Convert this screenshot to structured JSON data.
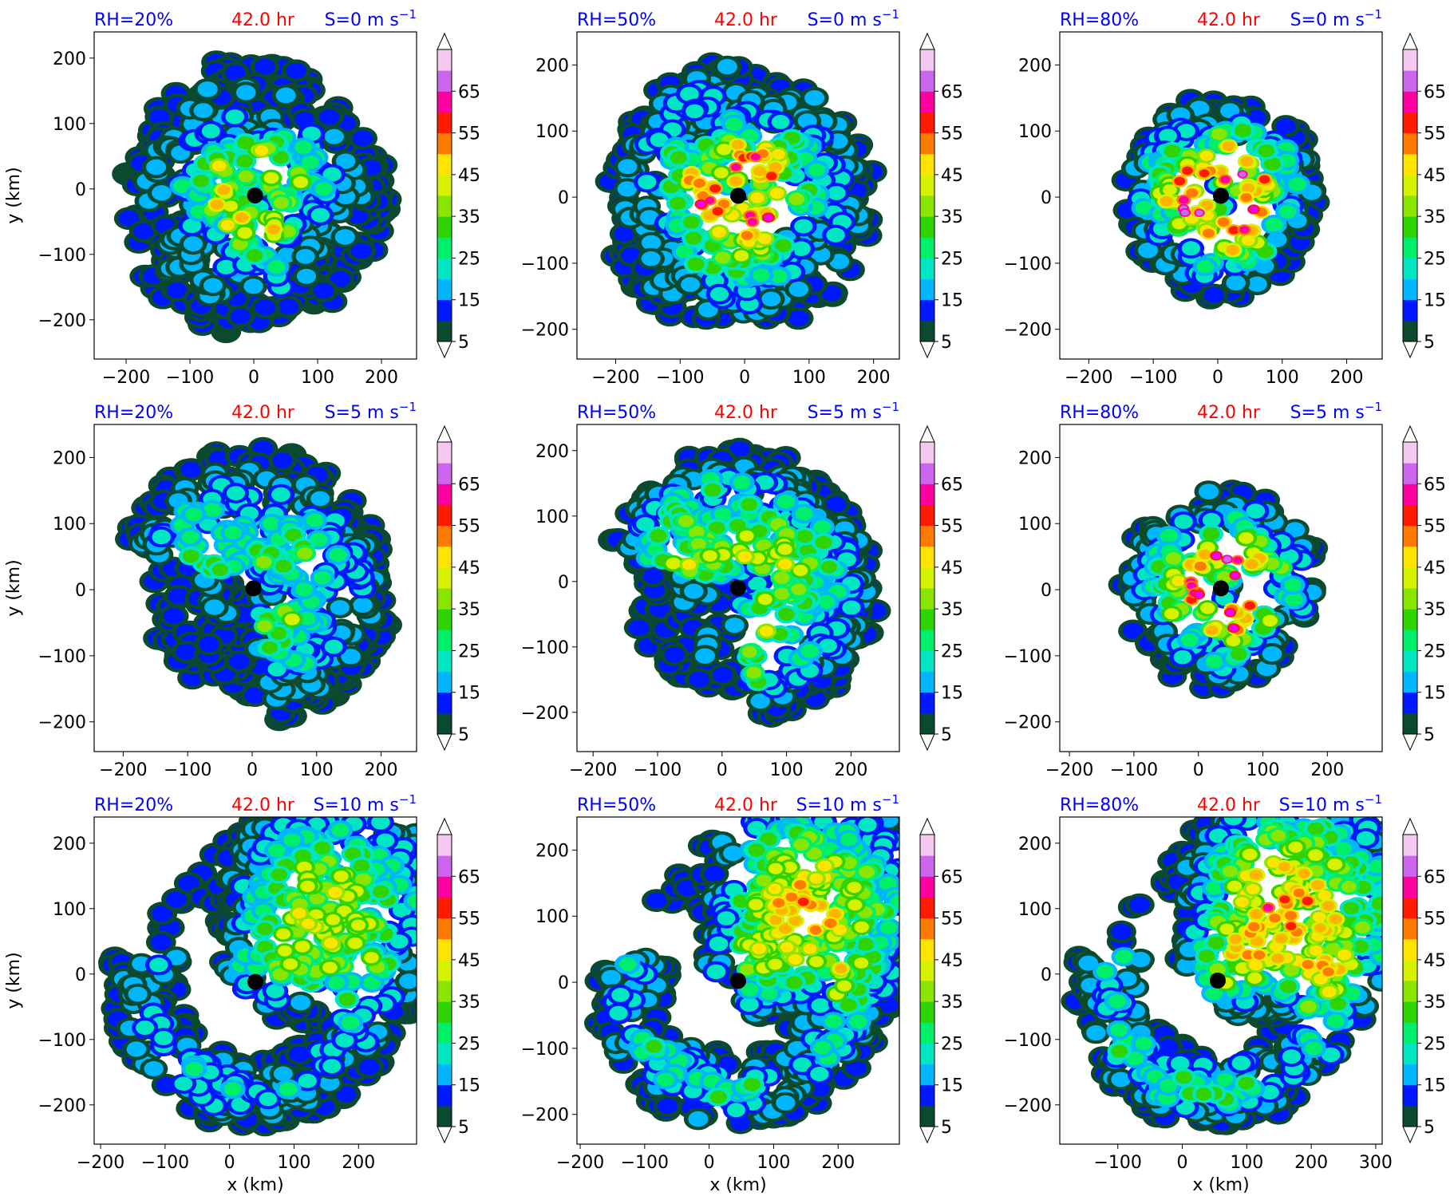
{
  "figure": {
    "time_label": "42.0 hr",
    "x_axis_label": "x (km)",
    "y_axis_label": "y (km)",
    "colorbar_ticks": [
      "5",
      "15",
      "25",
      "35",
      "45",
      "55",
      "65"
    ],
    "colors": {
      "rh_text": "#0000ff",
      "time_text": "#ff0000",
      "shear_text": "#0000ff",
      "center_marker": "#000000",
      "levels": [
        "#0b4a2e",
        "#0018ff",
        "#00b6ff",
        "#00e6c2",
        "#00ef6a",
        "#2fd400",
        "#8ae600",
        "#d6f200",
        "#ffe400",
        "#ffb400",
        "#ff7a00",
        "#ff1a00",
        "#ff00a0",
        "#ee00ff",
        "#cc66ee",
        "#f5c8f0"
      ]
    }
  },
  "panels": [
    {
      "rh": "RH=20%",
      "shear": "S=0 m s",
      "shear_sup": "−1",
      "x_ticks": [
        "−200",
        "−100",
        "0",
        "100",
        "200"
      ],
      "y_ticks": [
        "200",
        "100",
        "0",
        "−100",
        "−200"
      ]
    },
    {
      "rh": "RH=50%",
      "shear": "S=0 m s",
      "shear_sup": "−1",
      "x_ticks": [
        "−200",
        "−100",
        "0",
        "100",
        "200"
      ],
      "y_ticks": [
        "200",
        "100",
        "0",
        "−100",
        "−200"
      ]
    },
    {
      "rh": "RH=80%",
      "shear": "S=0 m s",
      "shear_sup": "−1",
      "x_ticks": [
        "−200",
        "−100",
        "0",
        "100",
        "200"
      ],
      "y_ticks": [
        "200",
        "100",
        "0",
        "−100",
        "−200"
      ]
    },
    {
      "rh": "RH=20%",
      "shear": "S=5 m s",
      "shear_sup": "−1",
      "x_ticks": [
        "−200",
        "−100",
        "0",
        "100",
        "200"
      ],
      "y_ticks": [
        "200",
        "100",
        "0",
        "−100",
        "−200"
      ]
    },
    {
      "rh": "RH=50%",
      "shear": "S=5 m s",
      "shear_sup": "−1",
      "x_ticks": [
        "−200",
        "−100",
        "0",
        "100",
        "200"
      ],
      "y_ticks": [
        "200",
        "100",
        "0",
        "−100",
        "−200"
      ]
    },
    {
      "rh": "RH=80%",
      "shear": "S=5 m s",
      "shear_sup": "−1",
      "x_ticks": [
        "−200",
        "−100",
        "0",
        "100",
        "200"
      ],
      "y_ticks": [
        "200",
        "100",
        "0",
        "−100",
        "−200"
      ]
    },
    {
      "rh": "RH=20%",
      "shear": "S=10 m s",
      "shear_sup": "−1",
      "x_ticks": [
        "−200",
        "−100",
        "0",
        "100",
        "200"
      ],
      "y_ticks": [
        "200",
        "100",
        "0",
        "−100",
        "−200"
      ]
    },
    {
      "rh": "RH=50%",
      "shear": "S=10 m s",
      "shear_sup": "−1",
      "x_ticks": [
        "−200",
        "−100",
        "0",
        "100",
        "200"
      ],
      "y_ticks": [
        "200",
        "100",
        "0",
        "−100",
        "−200"
      ]
    },
    {
      "rh": "RH=80%",
      "shear": "S=10 m s",
      "shear_sup": "−1",
      "x_ticks": [
        "−100",
        "0",
        "100",
        "200",
        "300"
      ],
      "y_ticks": [
        "200",
        "100",
        "0",
        "−100",
        "−200"
      ]
    }
  ],
  "chart_data": {
    "type": "heatmap",
    "panel_count": 9,
    "grid": "3x3 (rows: S = 0, 5, 10 m s−1; columns: RH = 20%, 50%, 80%)",
    "time": "42.0 hr",
    "xlabel": "x (km)",
    "ylabel": "y (km)",
    "colorbar": {
      "ticks": [
        5,
        15,
        25,
        35,
        45,
        55,
        65
      ],
      "levels_step": 5,
      "min": 5,
      "max": 70,
      "extend": "both"
    },
    "panels": [
      {
        "rh": 20,
        "shear": 0,
        "xlim": [
          -250,
          255
        ],
        "ylim": [
          -260,
          240
        ],
        "center_km": [
          2,
          -10
        ],
        "structure": "ring",
        "intensity": 0.55
      },
      {
        "rh": 50,
        "shear": 0,
        "xlim": [
          -260,
          240
        ],
        "ylim": [
          -245,
          250
        ],
        "center_km": [
          -10,
          2
        ],
        "structure": "ring",
        "intensity": 0.8
      },
      {
        "rh": 80,
        "shear": 0,
        "xlim": [
          -245,
          255
        ],
        "ylim": [
          -245,
          250
        ],
        "center_km": [
          5,
          2
        ],
        "structure": "compact",
        "intensity": 0.9
      },
      {
        "rh": 20,
        "shear": 5,
        "xlim": [
          -245,
          255
        ],
        "ylim": [
          -245,
          250
        ],
        "center_km": [
          2,
          2
        ],
        "structure": "arc",
        "intensity": 0.55
      },
      {
        "rh": 50,
        "shear": 5,
        "xlim": [
          -225,
          275
        ],
        "ylim": [
          -260,
          240
        ],
        "center_km": [
          25,
          -10
        ],
        "structure": "arc",
        "intensity": 0.7
      },
      {
        "rh": 80,
        "shear": 5,
        "xlim": [
          -215,
          285
        ],
        "ylim": [
          -245,
          250
        ],
        "center_km": [
          35,
          2
        ],
        "structure": "compact",
        "intensity": 0.85
      },
      {
        "rh": 20,
        "shear": 10,
        "xlim": [
          -210,
          290
        ],
        "ylim": [
          -260,
          240
        ],
        "center_km": [
          40,
          -12
        ],
        "structure": "wedge",
        "intensity": 0.6
      },
      {
        "rh": 50,
        "shear": 10,
        "xlim": [
          -205,
          295
        ],
        "ylim": [
          -245,
          250
        ],
        "center_km": [
          45,
          2
        ],
        "structure": "wedge",
        "intensity": 0.7
      },
      {
        "rh": 80,
        "shear": 10,
        "xlim": [
          -190,
          310
        ],
        "ylim": [
          -260,
          240
        ],
        "center_km": [
          55,
          -10
        ],
        "structure": "wedge",
        "intensity": 0.8
      }
    ]
  }
}
